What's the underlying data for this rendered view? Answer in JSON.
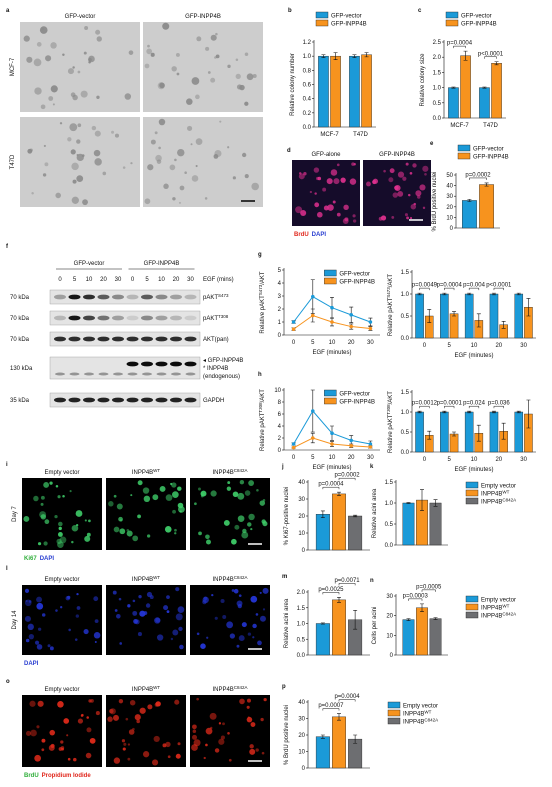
{
  "image_panels": [
    {
      "label": "a",
      "columns": [
        "GFP-vector",
        "GFP-INPP4B"
      ],
      "rows": [
        "MCF-7",
        "T47D"
      ]
    },
    {
      "label": "d",
      "columns": [
        "GFP-alone",
        "GFP-INPP4B"
      ],
      "stains": [
        {
          "text": "BrdU",
          "color": "#e0261b"
        },
        {
          "text": "DAPI",
          "color": "#2a3fd1"
        }
      ]
    },
    {
      "label": "i",
      "columns": [
        "Empty vector",
        [
          "INPP4B",
          {
            "sup": "WT"
          }
        ],
        [
          "INPP4B",
          {
            "sup": "C842A"
          }
        ]
      ],
      "rows": [
        "Day 7"
      ],
      "stains": [
        {
          "text": "Ki67",
          "color": "#2fae3a"
        },
        {
          "text": "DAPI",
          "color": "#2a3fd1"
        }
      ]
    },
    {
      "label": "l",
      "columns": [
        "Empty vector",
        [
          "INPP4B",
          {
            "sup": "WT"
          }
        ],
        [
          "INPP4B",
          {
            "sup": "C842A"
          }
        ]
      ],
      "rows": [
        "Day 14"
      ],
      "stains": [
        {
          "text": "DAPI",
          "color": "#2a3fd1"
        }
      ]
    },
    {
      "label": "o",
      "columns": [
        "Empty vector",
        [
          "INPP4B",
          {
            "sup": "WT"
          }
        ],
        [
          "INPP4B",
          {
            "sup": "C842A"
          }
        ]
      ],
      "stains": [
        {
          "text": "BrdU",
          "color": "#2fae3a"
        },
        {
          "text": "Propidium Iodide",
          "color": "#e0261b"
        }
      ]
    }
  ],
  "blot": {
    "label": "f",
    "groups": [
      "GFP-vector",
      "GFP-INPP4B"
    ],
    "treatment": "EGF (mins)",
    "lanes": [
      "0",
      "5",
      "10",
      "20",
      "30",
      "0",
      "5",
      "10",
      "20",
      "30"
    ],
    "rows": [
      {
        "size": "70 kDa",
        "lines": [
          [
            "pAKT",
            {
              "sup": "S473"
            }
          ]
        ]
      },
      {
        "size": "70 kDa",
        "lines": [
          [
            "pAKT",
            {
              "sup": "T308"
            }
          ]
        ]
      },
      {
        "size": "70 kDa",
        "lines": [
          "AKT(pan)"
        ]
      },
      {
        "size": "130 kDa",
        "lines": [
          "◂ GFP-INPP4B",
          "* INPP4B",
          "(endogenous)"
        ]
      },
      {
        "size": "35 kDa",
        "lines": [
          "GAPDH"
        ]
      }
    ]
  },
  "chart_data": [
    {
      "type": "bar",
      "label": "b",
      "ylabel": "Relative colony number",
      "categories": [
        "MCF-7",
        "T47D"
      ],
      "legend": "top",
      "ylim": [
        0,
        1.2
      ],
      "yticks": [
        {
          "value": 0,
          "label": "0.0"
        },
        0.2,
        0.4,
        0.6,
        0.8,
        {
          "value": 1,
          "label": "1.0"
        },
        1.2
      ],
      "series": [
        {
          "name": "GFP-vector",
          "color": "#1b9ad8",
          "values": [
            1.0,
            1.0
          ],
          "errors": [
            0.02,
            0.02
          ]
        },
        {
          "name": "GFP-INPP4B",
          "color": "#f7931e",
          "values": [
            1.0,
            1.02
          ],
          "errors": [
            0.05,
            0.03
          ]
        }
      ]
    },
    {
      "type": "bar",
      "label": "c",
      "ylabel": "Relative colony size",
      "categories": [
        "MCF-7",
        "T47D"
      ],
      "legend": "top",
      "ylim": [
        0,
        2.5
      ],
      "yticks": [
        {
          "value": 0,
          "label": "0.0"
        },
        0.5,
        {
          "value": 1,
          "label": "1.0"
        },
        1.5,
        {
          "value": 2,
          "label": "2.0"
        },
        2.5
      ],
      "annotations": [
        "p=0.0004",
        "p<0.0001"
      ],
      "series": [
        {
          "name": "GFP-vector",
          "color": "#1b9ad8",
          "values": [
            1.0,
            1.0
          ],
          "errors": [
            0.02,
            0.02
          ]
        },
        {
          "name": "GFP-INPP4B",
          "color": "#f7931e",
          "values": [
            2.05,
            1.8
          ],
          "errors": [
            0.15,
            0.05
          ]
        }
      ]
    },
    {
      "type": "bar",
      "label": "e",
      "ylabel": "% BrdU positive nuclei",
      "categories": [
        null
      ],
      "legend": "top",
      "ylim": [
        0,
        50
      ],
      "yticks": [
        0,
        10,
        20,
        30,
        40,
        50
      ],
      "annotations": [
        "p=0.0002"
      ],
      "series": [
        {
          "name": "GFP-vector",
          "color": "#1b9ad8",
          "values": [
            26
          ],
          "errors": [
            1
          ]
        },
        {
          "name": "GFP-INPP4B",
          "color": "#f7931e",
          "values": [
            41
          ],
          "errors": [
            1.5
          ]
        }
      ]
    },
    {
      "type": "line",
      "label": "g",
      "ylabel": [
        "Relative pAKT",
        {
          "sup": "S473"
        },
        "/AKT"
      ],
      "xlabel": "EGF (minutes)",
      "legend": "upper right",
      "categories": [
        "0",
        "5",
        "10",
        "20",
        "30"
      ],
      "ylim": [
        0,
        5
      ],
      "yticks": [
        0,
        1,
        2,
        3,
        4,
        5
      ],
      "series": [
        {
          "name": "GFP-vector",
          "color": "#1b9ad8",
          "values": [
            1.0,
            2.95,
            2.1,
            1.55,
            1.0
          ],
          "errors": [
            0.1,
            1.3,
            0.8,
            0.6,
            0.3
          ]
        },
        {
          "name": "GFP-INPP4B",
          "color": "#f7931e",
          "values": [
            0.45,
            1.5,
            1.0,
            0.65,
            0.5
          ],
          "errors": [
            0.1,
            0.5,
            0.3,
            0.2,
            0.15
          ]
        }
      ]
    },
    {
      "type": "bar",
      "ylabel": [
        "Relative pAKT",
        {
          "sup": "S473"
        },
        "/AKT"
      ],
      "xlabel": "EGF (minutes)",
      "categories": [
        "0",
        "5",
        "10",
        "20",
        "30"
      ],
      "ylim": [
        0,
        1.5
      ],
      "yticks": [
        {
          "value": 0,
          "label": "0.0"
        },
        0.5,
        {
          "value": 1,
          "label": "1.0"
        },
        1.5
      ],
      "annotations": [
        "p=0.0049",
        "p=0.0004",
        "p=0.004",
        "p<0.0001"
      ],
      "series": [
        {
          "color": "#1b9ad8",
          "values": [
            1,
            1,
            1,
            1,
            1
          ],
          "errors": [
            0.02,
            0.02,
            0.02,
            0.02,
            0.02
          ]
        },
        {
          "color": "#f7931e",
          "values": [
            0.5,
            0.55,
            0.4,
            0.3,
            0.7
          ],
          "errors": [
            0.15,
            0.05,
            0.15,
            0.08,
            0.2
          ]
        }
      ]
    },
    {
      "type": "line",
      "label": "h",
      "ylabel": [
        "Relative pAKT",
        {
          "sup": "T308"
        },
        "/AKT"
      ],
      "xlabel": "EGF (minutes)",
      "legend": "upper right",
      "categories": [
        "0",
        "5",
        "10",
        "20",
        "30"
      ],
      "ylim": [
        0,
        10
      ],
      "yticks": [
        0,
        2,
        4,
        6,
        8,
        10
      ],
      "series": [
        {
          "name": "GFP-vector",
          "color": "#1b9ad8",
          "values": [
            1.0,
            6.5,
            2.8,
            1.6,
            1.0
          ],
          "errors": [
            0.2,
            3.5,
            1.2,
            0.8,
            0.5
          ]
        },
        {
          "name": "GFP-INPP4B",
          "color": "#f7931e",
          "values": [
            0.4,
            2.0,
            1.0,
            0.7,
            0.5
          ],
          "errors": [
            0.1,
            0.8,
            0.4,
            0.3,
            0.2
          ]
        }
      ]
    },
    {
      "type": "bar",
      "ylabel": [
        "Relative pAKT",
        {
          "sup": "T308"
        },
        "/AKT"
      ],
      "xlabel": "EGF (minutes)",
      "categories": [
        "0",
        "5",
        "10",
        "20",
        "30"
      ],
      "ylim": [
        0,
        1.5
      ],
      "yticks": [
        {
          "value": 0,
          "label": "0.0"
        },
        0.5,
        {
          "value": 1,
          "label": "1.0"
        },
        1.5
      ],
      "annotations": [
        "p=0.0012",
        "p=0.0001",
        "p=0.024",
        "p=0.036"
      ],
      "series": [
        {
          "color": "#1b9ad8",
          "values": [
            1,
            1,
            1,
            1,
            1
          ],
          "errors": [
            0.02,
            0.02,
            0.02,
            0.02,
            0.02
          ]
        },
        {
          "color": "#f7931e",
          "values": [
            0.42,
            0.45,
            0.47,
            0.52,
            0.95
          ],
          "errors": [
            0.1,
            0.05,
            0.2,
            0.2,
            0.35
          ]
        }
      ]
    },
    {
      "type": "bar",
      "label": "j",
      "ylabel": "% Ki67-positive nuclei",
      "categories": [
        null
      ],
      "ylim": [
        0,
        40
      ],
      "yticks": [
        0,
        10,
        20,
        30,
        40
      ],
      "annotations": [
        "p=0.0004",
        "p=0.0002"
      ],
      "series": [
        {
          "color": "#1b9ad8",
          "values": [
            21
          ],
          "errors": [
            2
          ]
        },
        {
          "color": "#f7931e",
          "values": [
            33
          ],
          "errors": [
            1
          ]
        },
        {
          "color": "#6d6e71",
          "values": [
            20
          ],
          "errors": [
            0.5
          ]
        }
      ]
    },
    {
      "type": "bar",
      "label": "k",
      "ylabel": "Relative acini area",
      "categories": [
        null
      ],
      "legend": "right",
      "ylim": [
        0,
        1.5
      ],
      "yticks": [
        {
          "value": 0,
          "label": "0.0"
        },
        0.5,
        {
          "value": 1,
          "label": "1.0"
        },
        1.5
      ],
      "series": [
        {
          "name": "Empty vector",
          "color": "#1b9ad8",
          "values": [
            1.0
          ],
          "errors": [
            0.01
          ]
        },
        {
          "name": [
            "INPP4B",
            {
              "sup": "WT"
            }
          ],
          "color": "#f7931e",
          "values": [
            1.07
          ],
          "errors": [
            0.25
          ]
        },
        {
          "name": [
            "INPP4B",
            {
              "sup": "C842A"
            }
          ],
          "color": "#6d6e71",
          "values": [
            1.0
          ],
          "errors": [
            0.08
          ]
        }
      ]
    },
    {
      "type": "bar",
      "label": "m",
      "ylabel": "Relative acini area",
      "categories": [
        null
      ],
      "ylim": [
        0,
        2
      ],
      "yticks": [
        {
          "value": 0,
          "label": "0.0"
        },
        0.5,
        {
          "value": 1,
          "label": "1.0"
        },
        1.5,
        {
          "value": 2,
          "label": "2.0"
        }
      ],
      "annotations": [
        "p=0.0025",
        "p=0.0071"
      ],
      "series": [
        {
          "color": "#1b9ad8",
          "values": [
            1.0
          ],
          "errors": [
            0.02
          ]
        },
        {
          "color": "#f7931e",
          "values": [
            1.75
          ],
          "errors": [
            0.08
          ]
        },
        {
          "color": "#6d6e71",
          "values": [
            1.12
          ],
          "errors": [
            0.3
          ]
        }
      ]
    },
    {
      "type": "bar",
      "label": "n",
      "ylabel": "Cells per acini",
      "categories": [
        null
      ],
      "legend": "right",
      "ylim": [
        0,
        30
      ],
      "yticks": [
        0,
        10,
        20,
        30
      ],
      "annotations": [
        "p=0.0003",
        "p=0.0005"
      ],
      "series": [
        {
          "name": "Empty vector",
          "color": "#1b9ad8",
          "values": [
            18
          ],
          "errors": [
            0.5
          ]
        },
        {
          "name": [
            "INPP4B",
            {
              "sup": "WT"
            }
          ],
          "color": "#f7931e",
          "values": [
            24
          ],
          "errors": [
            2
          ]
        },
        {
          "name": [
            "INPP4B",
            {
              "sup": "C842A"
            }
          ],
          "color": "#6d6e71",
          "values": [
            18.5
          ],
          "errors": [
            0.5
          ]
        }
      ]
    },
    {
      "type": "bar",
      "label": "p",
      "ylabel": "% BrdU positive nuclei",
      "categories": [
        null
      ],
      "legend": "right",
      "ylim": [
        0,
        40
      ],
      "yticks": [
        0,
        10,
        20,
        30,
        40
      ],
      "annotations": [
        "p=0.0007",
        "p=0.0004"
      ],
      "series": [
        {
          "name": "Empty vector",
          "color": "#1b9ad8",
          "values": [
            19
          ],
          "errors": [
            1
          ]
        },
        {
          "name": [
            "INPP4B",
            {
              "sup": "WT"
            }
          ],
          "color": "#f7931e",
          "values": [
            31
          ],
          "errors": [
            2
          ]
        },
        {
          "name": [
            "INPP4B",
            {
              "sup": "C842A"
            }
          ],
          "color": "#6d6e71",
          "values": [
            17.5
          ],
          "errors": [
            2.5
          ]
        }
      ]
    }
  ]
}
